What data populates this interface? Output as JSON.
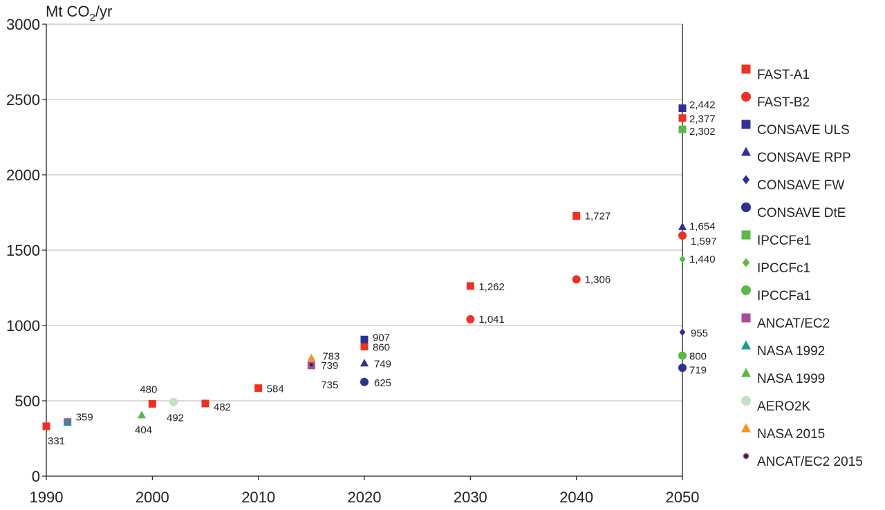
{
  "chart_data": {
    "type": "scatter",
    "ylabel": {
      "main": "Mt CO",
      "sub": "2",
      "tail": "/yr"
    },
    "xlim": [
      1990,
      2050
    ],
    "ylim": [
      0,
      3000
    ],
    "x_ticks": [
      "1990",
      "2000",
      "2010",
      "2020",
      "2030",
      "2040",
      "2050"
    ],
    "y_ticks": [
      "0",
      "500",
      "1000",
      "1500",
      "2000",
      "2500",
      "3000"
    ],
    "grid": "horizontal",
    "legend_position": "right",
    "series": [
      {
        "name": "FAST-A1",
        "marker": "square",
        "color": "#ee3124",
        "points": [
          {
            "x": 1990,
            "y": 331,
            "label": "331"
          },
          {
            "x": 2000,
            "y": 480,
            "label": "480"
          },
          {
            "x": 2005,
            "y": 482,
            "label": "482"
          },
          {
            "x": 2010,
            "y": 584,
            "label": "584"
          },
          {
            "x": 2020,
            "y": 860,
            "label": "860"
          },
          {
            "x": 2030,
            "y": 1262,
            "label": "1,262"
          },
          {
            "x": 2040,
            "y": 1727,
            "label": "1,727"
          },
          {
            "x": 2050,
            "y": 2377,
            "label": "2,377"
          }
        ]
      },
      {
        "name": "FAST-B2",
        "marker": "circle",
        "color": "#ee3124",
        "points": [
          {
            "x": 2030,
            "y": 1041,
            "label": "1,041"
          },
          {
            "x": 2040,
            "y": 1306,
            "label": "1,306"
          },
          {
            "x": 2050,
            "y": 1597,
            "label": "1,597"
          }
        ]
      },
      {
        "name": "CONSAVE ULS",
        "marker": "square",
        "color": "#2e3192",
        "points": [
          {
            "x": 2020,
            "y": 907,
            "label": "907"
          },
          {
            "x": 2050,
            "y": 2442,
            "label": "2,442"
          }
        ]
      },
      {
        "name": "CONSAVE RPP",
        "marker": "triangle",
        "color": "#2e3192",
        "points": [
          {
            "x": 2020,
            "y": 749,
            "label": "749"
          },
          {
            "x": 2050,
            "y": 1654,
            "label": "1,654"
          }
        ]
      },
      {
        "name": "CONSAVE FW",
        "marker": "diamond",
        "color": "#2e3192",
        "points": [
          {
            "x": 2050,
            "y": 955,
            "label": "955"
          }
        ]
      },
      {
        "name": "CONSAVE  DtE",
        "marker": "circle",
        "color": "#2e3192",
        "points": [
          {
            "x": 2020,
            "y": 625,
            "label": "625"
          },
          {
            "x": 2050,
            "y": 719,
            "label": "719"
          }
        ]
      },
      {
        "name": "IPCCFe1",
        "marker": "square",
        "color": "#5ab946",
        "points": [
          {
            "x": 2050,
            "y": 2302,
            "label": "2,302"
          }
        ]
      },
      {
        "name": "IPCCFc1",
        "marker": "diamond",
        "color": "#5ab946",
        "points": [
          {
            "x": 2050,
            "y": 1440,
            "label": "1,440"
          }
        ]
      },
      {
        "name": "IPCCFa1",
        "marker": "circle",
        "color": "#5ab946",
        "points": [
          {
            "x": 2050,
            "y": 800,
            "label": "800"
          }
        ]
      },
      {
        "name": "ANCAT/EC2",
        "marker": "square",
        "color": "#a64d9e",
        "points": [
          {
            "x": 1992,
            "y": 359,
            "label": "359"
          },
          {
            "x": 2015,
            "y": 735,
            "label": "735"
          }
        ]
      },
      {
        "name": "NASA 1992",
        "marker": "triangle",
        "color": "#1a9d8b",
        "points": [
          {
            "x": 1992,
            "y": 359,
            "label": ""
          }
        ]
      },
      {
        "name": "NASA 1999",
        "marker": "triangle",
        "color": "#5ab946",
        "points": [
          {
            "x": 1999,
            "y": 404,
            "label": "404"
          }
        ]
      },
      {
        "name": "AERO2K",
        "marker": "circle",
        "color": "#c3e3c0",
        "points": [
          {
            "x": 2002,
            "y": 492,
            "label": "492"
          }
        ]
      },
      {
        "name": "NASA 2015",
        "marker": "triangle",
        "color": "#f7941d",
        "points": [
          {
            "x": 2015,
            "y": 783,
            "label": "783"
          }
        ]
      },
      {
        "name": "ANCAT/EC2 2015",
        "marker": "ring",
        "color": "#231f20",
        "ring_color": "#a64d9e",
        "points": [
          {
            "x": 2015,
            "y": 739,
            "label": "739"
          }
        ]
      }
    ]
  }
}
